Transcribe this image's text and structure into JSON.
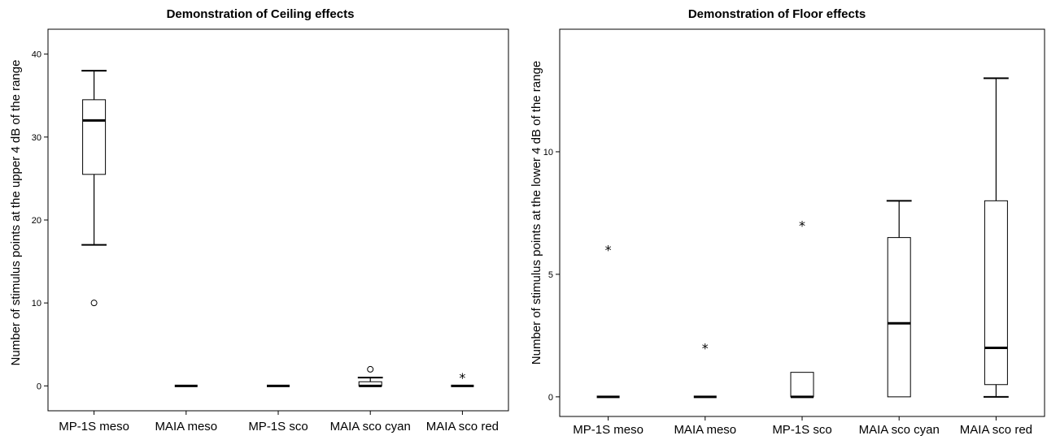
{
  "chart_data": [
    {
      "type": "boxplot",
      "title": "Demonstration of Ceiling effects",
      "xlabel": "",
      "ylabel": "Number of stimulus points at the upper 4 dB of the range",
      "ylim": [
        -3,
        43
      ],
      "yticks": [
        0,
        10,
        20,
        30,
        40
      ],
      "categories": [
        "MP-1S meso",
        "MAIA meso",
        "MP-1S sco",
        "MAIA sco cyan",
        "MAIA sco red"
      ],
      "boxes": [
        {
          "min": 17,
          "q1": 25.5,
          "median": 32,
          "q3": 34.5,
          "max": 38,
          "outliers": [
            10
          ],
          "extremes": []
        },
        {
          "min": 0,
          "q1": 0,
          "median": 0,
          "q3": 0,
          "max": 0,
          "outliers": [],
          "extremes": []
        },
        {
          "min": 0,
          "q1": 0,
          "median": 0,
          "q3": 0,
          "max": 0,
          "outliers": [],
          "extremes": []
        },
        {
          "min": 0,
          "q1": 0,
          "median": 0,
          "q3": 0.5,
          "max": 1,
          "outliers": [
            2
          ],
          "extremes": []
        },
        {
          "min": 0,
          "q1": 0,
          "median": 0,
          "q3": 0,
          "max": 0,
          "outliers": [],
          "extremes": [
            1
          ]
        }
      ]
    },
    {
      "type": "boxplot",
      "title": "Demonstration of Floor effects",
      "xlabel": "",
      "ylabel": "Number of stimulus points at the lower 4 dB of the range",
      "ylim": [
        -0.8,
        15
      ],
      "yticks": [
        0,
        5,
        10
      ],
      "categories": [
        "MP-1S meso",
        "MAIA meso",
        "MP-1S sco",
        "MAIA sco cyan",
        "MAIA sco red"
      ],
      "boxes": [
        {
          "min": 0,
          "q1": 0,
          "median": 0,
          "q3": 0,
          "max": 0,
          "outliers": [],
          "extremes": [
            6
          ]
        },
        {
          "min": 0,
          "q1": 0,
          "median": 0,
          "q3": 0,
          "max": 0,
          "outliers": [],
          "extremes": [
            2
          ]
        },
        {
          "min": 0,
          "q1": 0,
          "median": 0,
          "q3": 1,
          "max": 1,
          "outliers": [],
          "extremes": [
            7
          ]
        },
        {
          "min": 0,
          "q1": 0,
          "median": 3,
          "q3": 6.5,
          "max": 8,
          "outliers": [],
          "extremes": []
        },
        {
          "min": 0,
          "q1": 0.5,
          "median": 2,
          "q3": 8,
          "max": 13,
          "outliers": [],
          "extremes": []
        }
      ]
    }
  ]
}
